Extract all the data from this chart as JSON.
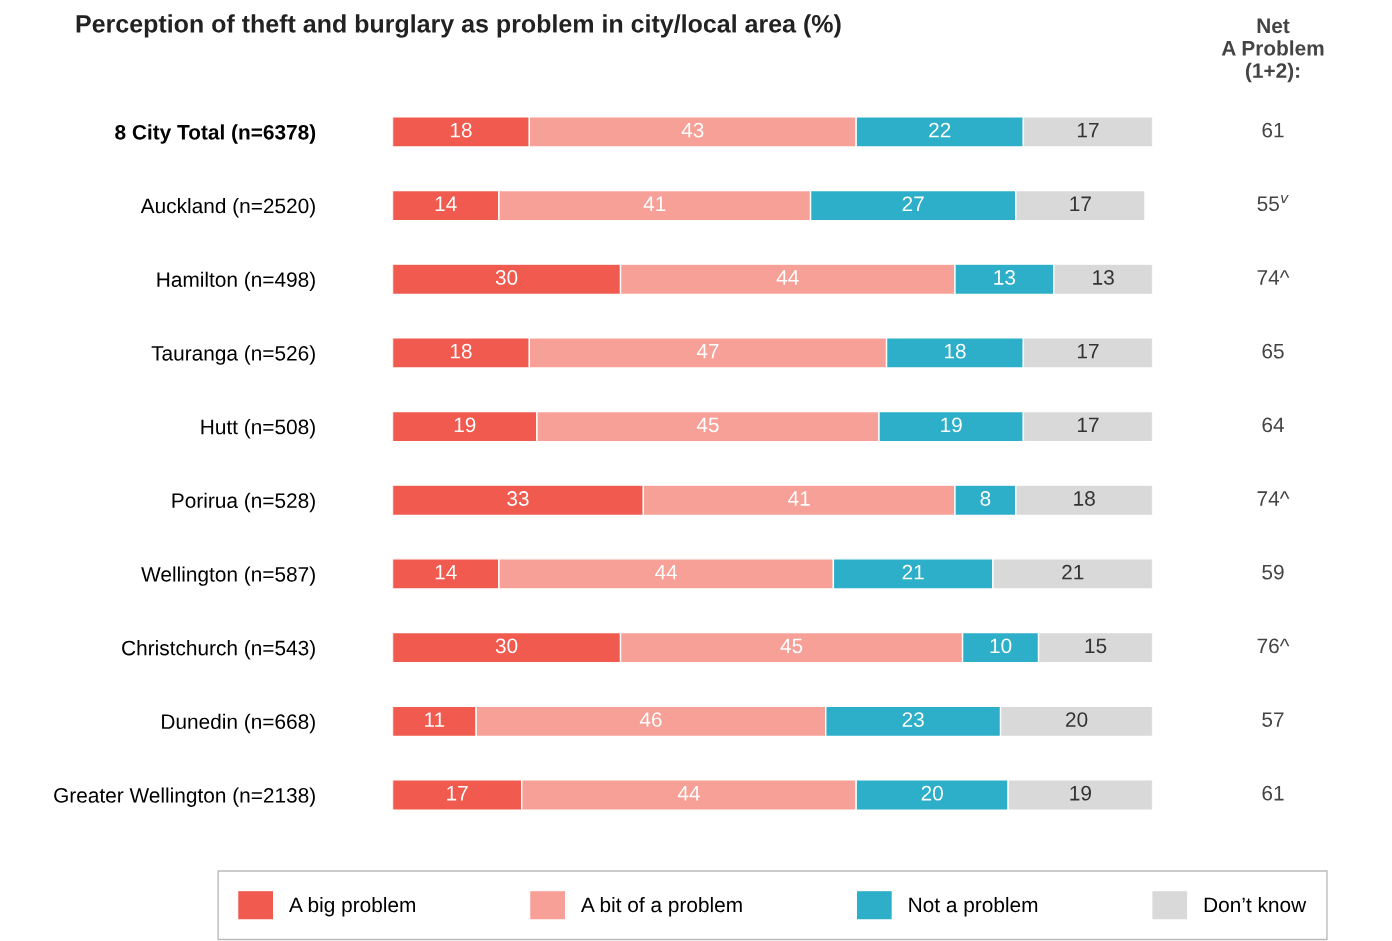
{
  "chart_data": {
    "type": "bar",
    "orientation": "horizontal",
    "stacked": true,
    "data_labels": true,
    "legend": "bottom",
    "grid": false,
    "title": "Perception of theft and burglary as problem in city/local area (%)",
    "categories": [
      "8 City Total (n=6378)",
      "Auckland (n=2520)",
      "Hamilton (n=498)",
      "Tauranga (n=526)",
      "Hutt (n=508)",
      "Porirua (n=528)",
      "Wellington (n=587)",
      "Christchurch (n=543)",
      "Dunedin (n=668)",
      "Greater Wellington (n=2138)"
    ],
    "series": [
      {
        "name": "A big problem",
        "color": "#f05a4f",
        "values": [
          18,
          14,
          30,
          18,
          19,
          33,
          14,
          30,
          11,
          17
        ]
      },
      {
        "name": "A bit of a problem",
        "color": "#f7a097",
        "values": [
          43,
          41,
          44,
          47,
          45,
          41,
          44,
          45,
          46,
          44
        ]
      },
      {
        "name": "Not a problem",
        "color": "#2eafc9",
        "values": [
          22,
          27,
          13,
          18,
          19,
          8,
          21,
          10,
          23,
          20
        ]
      },
      {
        "name": "Don’t know",
        "color": "#d9d9d9",
        "values": [
          17,
          17,
          13,
          17,
          17,
          18,
          21,
          15,
          20,
          19
        ]
      }
    ],
    "annotations": [
      "Net\nA Problem\n(1+2):",
      "61",
      "55$^{v}$",
      "74^",
      "65",
      "64",
      "74^",
      "59",
      "76^",
      "57",
      "61"
    ]
  }
}
